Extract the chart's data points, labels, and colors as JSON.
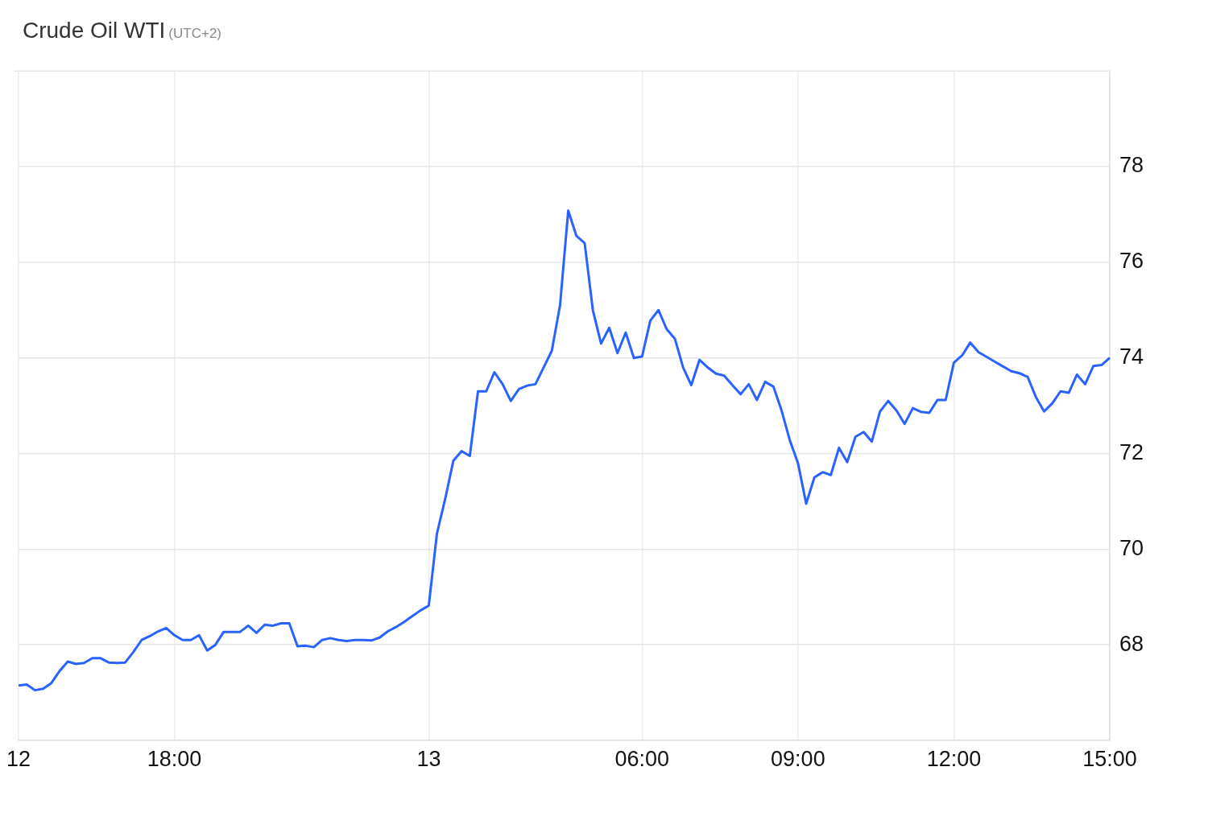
{
  "chart_data": {
    "type": "line",
    "title": "Crude Oil WTI",
    "subtitle": "(UTC+2)",
    "categories": [
      "12",
      null,
      null,
      null,
      null,
      null,
      null,
      null,
      null,
      null,
      null,
      null,
      null,
      null,
      null,
      null,
      null,
      null,
      null,
      "18:00",
      null,
      null,
      null,
      null,
      null,
      null,
      null,
      null,
      null,
      null,
      null,
      null,
      null,
      null,
      null,
      null,
      null,
      null,
      null,
      null,
      null,
      null,
      null,
      null,
      null,
      null,
      null,
      null,
      null,
      null,
      "13",
      null,
      null,
      null,
      null,
      null,
      null,
      null,
      null,
      null,
      null,
      null,
      null,
      null,
      null,
      null,
      null,
      null,
      null,
      null,
      null,
      null,
      null,
      null,
      null,
      null,
      "06:00",
      null,
      null,
      null,
      null,
      null,
      null,
      null,
      null,
      null,
      null,
      null,
      null,
      null,
      null,
      null,
      null,
      null,
      null,
      "09:00",
      null,
      null,
      null,
      null,
      null,
      null,
      null,
      null,
      null,
      null,
      null,
      null,
      null,
      null,
      null,
      null,
      null,
      null,
      "12:00",
      null,
      null,
      null,
      null,
      null,
      null,
      null,
      null,
      null,
      null,
      null,
      null,
      null,
      null,
      null,
      null,
      null,
      null,
      "15:00"
    ],
    "series": [
      {
        "color": "#2962ff",
        "values": [
          67.15,
          67.17,
          67.05,
          67.08,
          67.2,
          67.45,
          67.65,
          67.6,
          67.62,
          67.72,
          67.72,
          67.63,
          67.62,
          67.63,
          67.85,
          68.1,
          68.18,
          68.28,
          68.35,
          68.2,
          68.1,
          68.1,
          68.2,
          67.88,
          68.0,
          68.27,
          68.27,
          68.27,
          68.4,
          68.25,
          68.42,
          68.4,
          68.45,
          68.45,
          67.97,
          67.98,
          67.95,
          68.1,
          68.14,
          68.1,
          68.08,
          68.1,
          68.1,
          68.09,
          68.15,
          68.28,
          68.37,
          68.48,
          68.6,
          68.72,
          68.82,
          70.33,
          71.05,
          71.85,
          72.05,
          71.95,
          73.3,
          73.3,
          73.7,
          73.45,
          73.1,
          73.35,
          73.42,
          73.45,
          73.8,
          74.15,
          75.1,
          77.08,
          76.55,
          76.4,
          75.0,
          74.3,
          74.63,
          74.1,
          74.53,
          74.0,
          74.03,
          74.78,
          75.0,
          74.6,
          74.4,
          73.8,
          73.43,
          73.96,
          73.8,
          73.67,
          73.63,
          73.43,
          73.24,
          73.45,
          73.12,
          73.5,
          73.4,
          72.9,
          72.28,
          71.8,
          70.95,
          71.5,
          71.61,
          71.55,
          72.12,
          71.82,
          72.35,
          72.45,
          72.25,
          72.88,
          73.1,
          72.9,
          72.62,
          72.95,
          72.87,
          72.85,
          73.12,
          73.12,
          73.9,
          74.05,
          74.32,
          74.12,
          74.02,
          73.92,
          73.82,
          73.72,
          73.68,
          73.6,
          73.18,
          72.88,
          73.05,
          73.3,
          73.27,
          73.65,
          73.45,
          73.83,
          73.85,
          74.0
        ]
      }
    ],
    "ylim": [
      66,
      80
    ],
    "yticks": [
      68,
      70,
      72,
      74,
      76,
      78
    ],
    "grid": true
  }
}
